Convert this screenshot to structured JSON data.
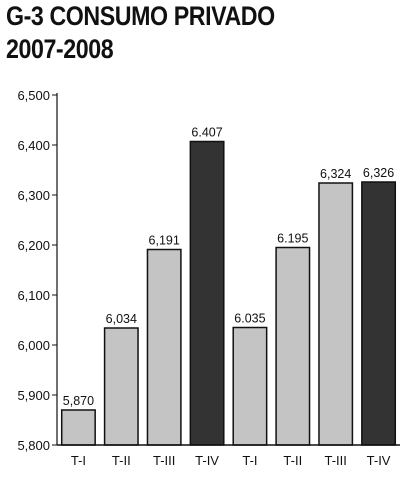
{
  "title": "G-3 CONSUMO PRIVADO",
  "subtitle": "2007-2008",
  "colors": {
    "bar_light": "#c4c4c4",
    "bar_dark": "#333333",
    "stroke": "#111111",
    "axis": "#111111"
  },
  "chart_data": {
    "type": "bar",
    "title": "G-3 CONSUMO PRIVADO",
    "subtitle": "2007-2008",
    "xlabel": "",
    "ylabel": "",
    "ylim": [
      5800,
      6500
    ],
    "yticks": [
      5800,
      5900,
      6000,
      6100,
      6200,
      6300,
      6400,
      6500
    ],
    "ytick_labels": [
      "5,800",
      "5,900",
      "6,000",
      "6,100",
      "6,200",
      "6,300",
      "6,400",
      "6,500"
    ],
    "grid": false,
    "categories": [
      "T-I",
      "T-II",
      "T-III",
      "T-IV",
      "T-I",
      "T-II",
      "T-III",
      "T-IV"
    ],
    "values": [
      5870,
      6034,
      6191,
      6407,
      6035,
      6195,
      6324,
      6326
    ],
    "data_labels": [
      "5,870",
      "6,034",
      "6,191",
      "6.407",
      "6.035",
      "6.195",
      "6,324",
      "6,326"
    ],
    "highlighted": [
      false,
      false,
      false,
      true,
      false,
      false,
      false,
      true
    ]
  }
}
